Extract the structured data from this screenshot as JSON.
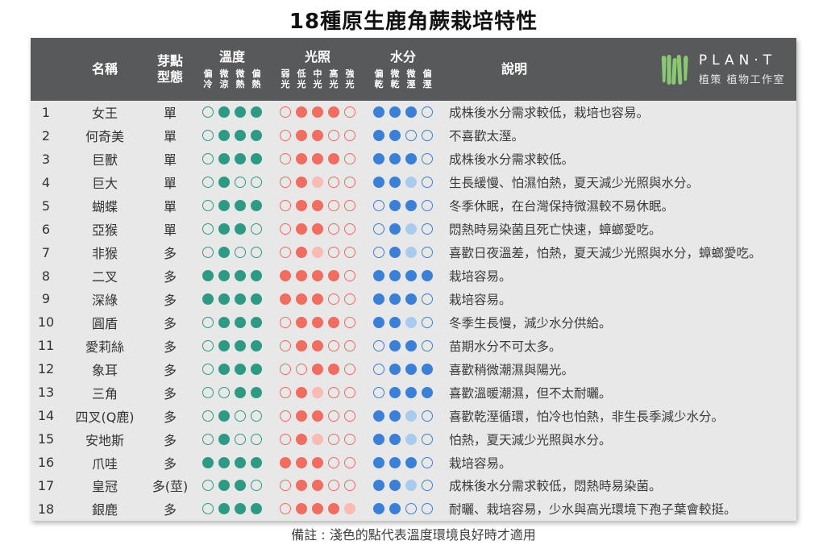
{
  "page": {
    "title": "18種原生鹿角蕨栽培特性",
    "footnote": "備註 : 淺色的點代表溫度環境良好時才適用"
  },
  "logo": {
    "icon": "plant-leaves-icon",
    "name": "PLAN·T",
    "subtitle": "植策 植物工作室"
  },
  "header": {
    "name": "名稱",
    "bud_line1": "芽點",
    "bud_line2": "型態",
    "temp_group": "溫度",
    "light_group": "光照",
    "water_group": "水分",
    "desc": "說明",
    "temp_subs": [
      "偏冷",
      "微涼",
      "微熱",
      "偏熱"
    ],
    "light_subs": [
      "弱光",
      "低光",
      "中光",
      "高光",
      "強光"
    ],
    "water_subs": [
      "偏乾",
      "微乾",
      "微溼",
      "偏溼"
    ]
  },
  "legend": {
    "dot_states": "0 = 空心圈, 1 = 實心點, 2 = 淺色點(溫度環境良好時才適用)"
  },
  "colors": {
    "header_bg": "#58595b",
    "body_bg": "#e8e8e8",
    "temp": "#2d9b84",
    "temp_light": "#a9d9cd",
    "light": "#f26c5f",
    "light_light": "#f9bbb2",
    "water": "#3b80d8",
    "water_light": "#a9cbf0",
    "logo_green": "#8bc873"
  },
  "rows": [
    {
      "num": "1",
      "name": "女王",
      "bud": "單",
      "temp": [
        0,
        1,
        1,
        1
      ],
      "light": [
        0,
        1,
        1,
        1,
        0
      ],
      "water": [
        1,
        1,
        1,
        0
      ],
      "desc": "成株後水分需求較低，栽培也容易。"
    },
    {
      "num": "2",
      "name": "何奇美",
      "bud": "單",
      "temp": [
        0,
        1,
        1,
        1
      ],
      "light": [
        0,
        1,
        1,
        0,
        0
      ],
      "water": [
        1,
        1,
        0,
        0
      ],
      "desc": "不喜歡太溼。"
    },
    {
      "num": "3",
      "name": "巨獸",
      "bud": "單",
      "temp": [
        0,
        1,
        1,
        1
      ],
      "light": [
        0,
        1,
        1,
        1,
        0
      ],
      "water": [
        1,
        1,
        1,
        0
      ],
      "desc": "成株後水分需求較低。"
    },
    {
      "num": "4",
      "name": "巨大",
      "bud": "單",
      "temp": [
        0,
        1,
        0,
        0
      ],
      "light": [
        0,
        1,
        2,
        0,
        0
      ],
      "water": [
        1,
        1,
        2,
        0
      ],
      "desc": "生長緩慢、怕濕怕熱，夏天減少光照與水分。"
    },
    {
      "num": "5",
      "name": "蝴蝶",
      "bud": "單",
      "temp": [
        0,
        1,
        1,
        1
      ],
      "light": [
        0,
        1,
        1,
        0,
        0
      ],
      "water": [
        0,
        1,
        1,
        0
      ],
      "desc": "冬季休眠，在台灣保持微濕較不易休眠。"
    },
    {
      "num": "6",
      "name": "亞猴",
      "bud": "單",
      "temp": [
        0,
        1,
        1,
        0
      ],
      "light": [
        0,
        1,
        1,
        0,
        0
      ],
      "water": [
        0,
        1,
        2,
        0
      ],
      "desc": "悶熱時易染菌且死亡快速，蟑螂愛吃。"
    },
    {
      "num": "7",
      "name": "非猴",
      "bud": "多",
      "temp": [
        0,
        1,
        0,
        0
      ],
      "light": [
        0,
        1,
        2,
        0,
        0
      ],
      "water": [
        0,
        1,
        2,
        0
      ],
      "desc": "喜歡日夜溫差，怕熱，夏天減少光照與水分，蟑螂愛吃。"
    },
    {
      "num": "8",
      "name": "二叉",
      "bud": "多",
      "temp": [
        1,
        1,
        1,
        1
      ],
      "light": [
        1,
        1,
        1,
        1,
        0
      ],
      "water": [
        1,
        1,
        1,
        1
      ],
      "desc": "栽培容易。"
    },
    {
      "num": "9",
      "name": "深綠",
      "bud": "多",
      "temp": [
        1,
        1,
        1,
        1
      ],
      "light": [
        1,
        1,
        1,
        0,
        0
      ],
      "water": [
        1,
        1,
        1,
        0
      ],
      "desc": "栽培容易。"
    },
    {
      "num": "10",
      "name": "圓盾",
      "bud": "多",
      "temp": [
        0,
        1,
        1,
        1
      ],
      "light": [
        0,
        1,
        1,
        1,
        0
      ],
      "water": [
        1,
        1,
        2,
        0
      ],
      "desc": "冬季生長慢，減少水分供給。"
    },
    {
      "num": "11",
      "name": "愛莉絲",
      "bud": "多",
      "temp": [
        0,
        1,
        1,
        1
      ],
      "light": [
        0,
        1,
        1,
        0,
        0
      ],
      "water": [
        0,
        1,
        1,
        0
      ],
      "desc": "苗期水分不可太多。"
    },
    {
      "num": "12",
      "name": "象耳",
      "bud": "多",
      "temp": [
        0,
        1,
        1,
        1
      ],
      "light": [
        0,
        0,
        1,
        1,
        0
      ],
      "water": [
        0,
        1,
        1,
        1
      ],
      "desc": "喜歡稍微潮濕與陽光。"
    },
    {
      "num": "13",
      "name": "三角",
      "bud": "多",
      "temp": [
        0,
        0,
        1,
        1
      ],
      "light": [
        0,
        1,
        2,
        0,
        0
      ],
      "water": [
        0,
        1,
        1,
        1
      ],
      "desc": "喜歡溫暖潮濕，但不太耐曬。"
    },
    {
      "num": "14",
      "name": "四叉(Q鹿)",
      "bud": "多",
      "temp": [
        0,
        1,
        0,
        0
      ],
      "light": [
        0,
        1,
        1,
        0,
        0
      ],
      "water": [
        1,
        1,
        2,
        0
      ],
      "desc": "喜歡乾溼循環，怕冷也怕熱，非生長季減少水分。"
    },
    {
      "num": "15",
      "name": "安地斯",
      "bud": "多",
      "temp": [
        0,
        1,
        0,
        0
      ],
      "light": [
        0,
        1,
        2,
        0,
        0
      ],
      "water": [
        1,
        1,
        2,
        0
      ],
      "desc": "怕熱，夏天減少光照與水分。"
    },
    {
      "num": "16",
      "name": "爪哇",
      "bud": "多",
      "temp": [
        1,
        1,
        1,
        1
      ],
      "light": [
        1,
        1,
        1,
        0,
        0
      ],
      "water": [
        1,
        1,
        1,
        0
      ],
      "desc": "栽培容易。"
    },
    {
      "num": "17",
      "name": "皇冠",
      "bud": "多(莖)",
      "temp": [
        0,
        1,
        1,
        0
      ],
      "light": [
        0,
        1,
        1,
        0,
        0
      ],
      "water": [
        1,
        1,
        2,
        0
      ],
      "desc": "成株後水分需求較低，悶熱時易染菌。"
    },
    {
      "num": "18",
      "name": "銀鹿",
      "bud": "多",
      "temp": [
        0,
        1,
        1,
        1
      ],
      "light": [
        0,
        1,
        1,
        1,
        2
      ],
      "water": [
        1,
        1,
        0,
        0
      ],
      "desc": "耐曬、栽培容易，少水與高光環境下孢子葉會較挺。"
    }
  ]
}
